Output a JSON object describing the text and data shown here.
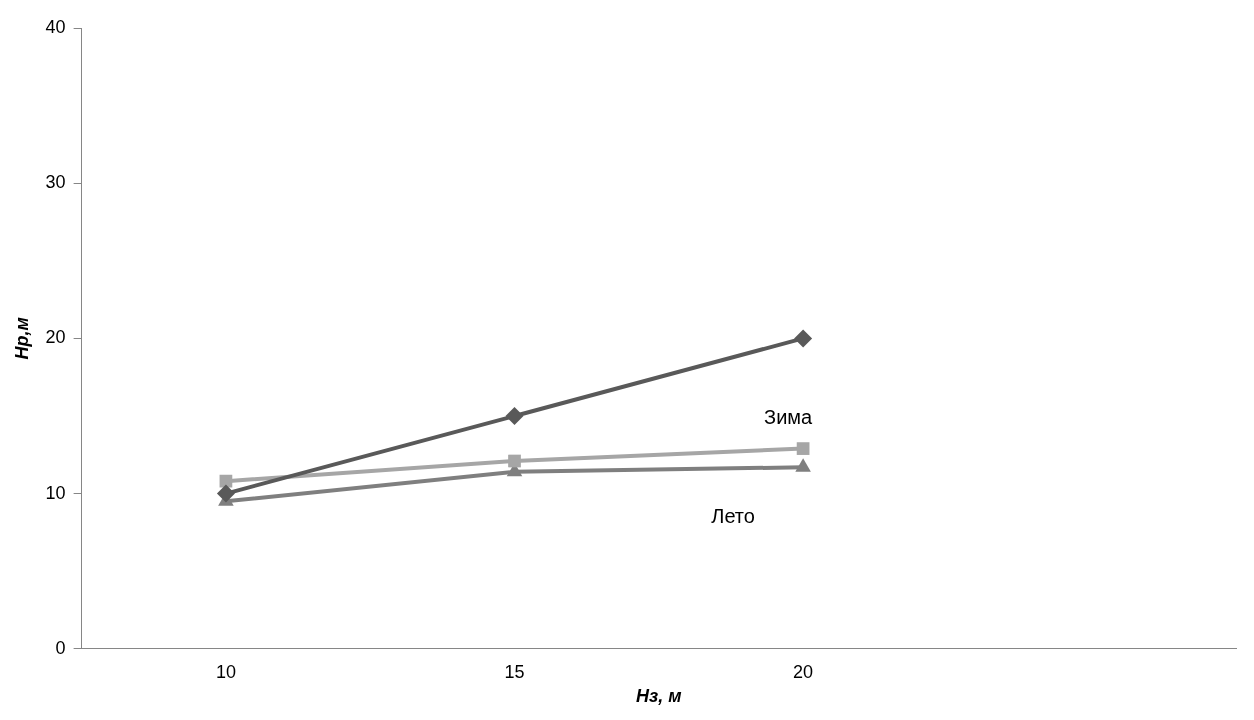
{
  "chart_data": {
    "type": "line",
    "xlabel": "Нз, м",
    "ylabel": "Нр,м",
    "categories": [
      "10",
      "15",
      "20",
      null
    ],
    "ylim": [
      0,
      40
    ],
    "yticks": [
      0,
      10,
      20,
      30,
      40
    ],
    "grid": false,
    "legend": false,
    "series": [
      {
        "color": "#595959",
        "marker": "diamond",
        "values": [
          10,
          15,
          20,
          null
        ]
      },
      {
        "name": "Зима",
        "color": "#a6a6a6",
        "marker": "square",
        "values": [
          10.8,
          12.1,
          12.9,
          null
        ]
      },
      {
        "name": "Лето",
        "color": "#7f7f7f",
        "marker": "triangle",
        "values": [
          9.5,
          11.4,
          11.7,
          null
        ]
      }
    ]
  }
}
